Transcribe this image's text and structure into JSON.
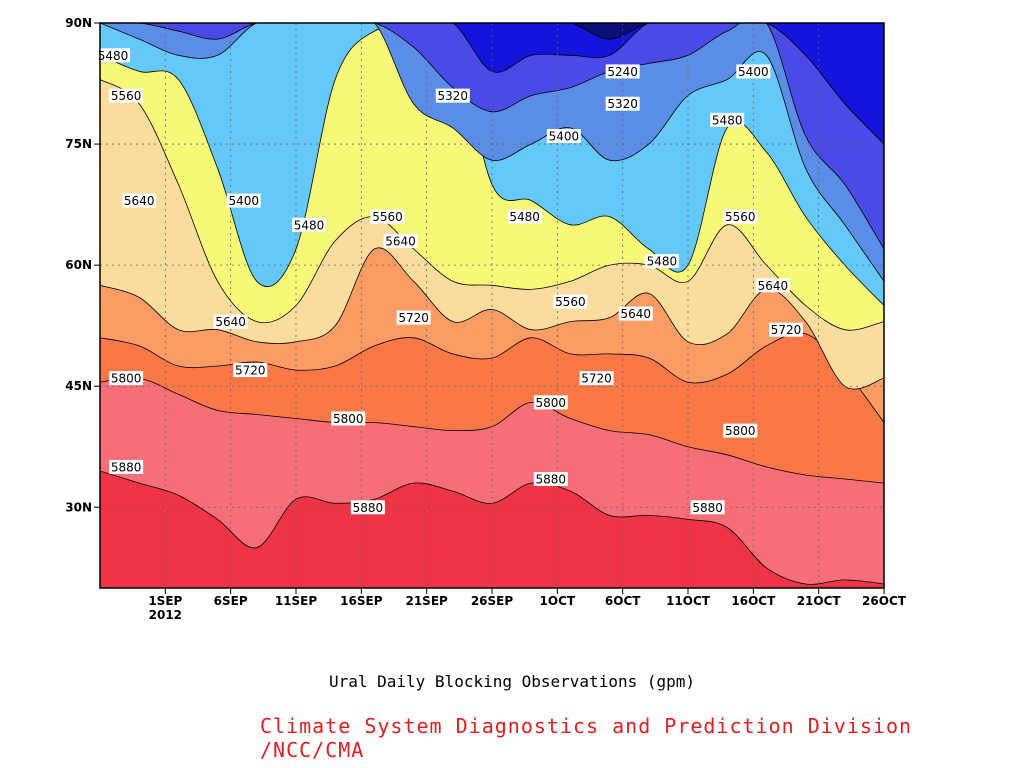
{
  "chart_data": {
    "type": "contour",
    "title": "",
    "caption": "Ural Daily Blocking Observations (gpm)",
    "credit": "Climate System Diagnostics and Prediction Division /NCC/CMA",
    "xlabel": "",
    "ylabel": "",
    "x_ticks": [
      {
        "label": "1SEP",
        "sublabel": "2012",
        "day": 5
      },
      {
        "label": "6SEP",
        "day": 10
      },
      {
        "label": "11SEP",
        "day": 15
      },
      {
        "label": "16SEP",
        "day": 20
      },
      {
        "label": "21SEP",
        "day": 25
      },
      {
        "label": "26SEP",
        "day": 30
      },
      {
        "label": "1OCT",
        "day": 35
      },
      {
        "label": "6OCT",
        "day": 40
      },
      {
        "label": "11OCT",
        "day": 45
      },
      {
        "label": "16OCT",
        "day": 50
      },
      {
        "label": "21OCT",
        "day": 55
      },
      {
        "label": "26OCT",
        "day": 60
      }
    ],
    "y_ticks": [
      {
        "label": "30N",
        "lat": 30
      },
      {
        "label": "45N",
        "lat": 45
      },
      {
        "label": "60N",
        "lat": 60
      },
      {
        "label": "75N",
        "lat": 75
      },
      {
        "label": "90N",
        "lat": 90
      }
    ],
    "xlim": [
      0,
      60
    ],
    "ylim": [
      20,
      90
    ],
    "grid": true,
    "levels": [
      5240,
      5320,
      5400,
      5480,
      5560,
      5640,
      5720,
      5800,
      5880
    ],
    "level_colors": [
      "#0a0f78",
      "#1414dc",
      "#4a4ae8",
      "#5a8ee6",
      "#64c8f8",
      "#f8f878",
      "#fadc9c",
      "#fa9c64",
      "#fa7846",
      "#f66e78",
      "#f03446"
    ],
    "layers": [
      {
        "color": "#f03446",
        "days": [
          0,
          3,
          6,
          9,
          12,
          15,
          18,
          21,
          24,
          27,
          30,
          33,
          36,
          39,
          42,
          45,
          48,
          51,
          54,
          57,
          60
        ],
        "lat": [
          20,
          20,
          20,
          20,
          20,
          20,
          20,
          20,
          20,
          20,
          20,
          20,
          20,
          20,
          20,
          20,
          20,
          20,
          20,
          20,
          20
        ]
      },
      {
        "color": "#f66e78",
        "days": [
          0,
          3,
          6,
          9,
          12,
          15,
          18,
          21,
          24,
          27,
          30,
          33,
          36,
          39,
          42,
          45,
          48,
          51,
          54,
          57,
          60
        ],
        "lat": [
          34.5,
          33,
          31.5,
          28.5,
          25,
          31,
          30.5,
          31,
          33,
          32,
          30.5,
          33,
          32,
          29,
          29,
          28.5,
          27.5,
          22.5,
          20.5,
          21,
          20.5
        ]
      },
      {
        "color": "#fa7846",
        "days": [
          0,
          3,
          6,
          9,
          12,
          15,
          18,
          21,
          24,
          27,
          30,
          33,
          36,
          39,
          42,
          45,
          48,
          51,
          54,
          57,
          60
        ],
        "lat": [
          45.5,
          46,
          44,
          42,
          41.5,
          41,
          40.5,
          40.5,
          40,
          39.5,
          40,
          43,
          41,
          39.5,
          39,
          37.5,
          36.5,
          35,
          34,
          33.5,
          33
        ]
      },
      {
        "color": "#fa9c64",
        "days": [
          0,
          3,
          6,
          9,
          12,
          15,
          18,
          21,
          24,
          27,
          30,
          33,
          36,
          39,
          42,
          45,
          48,
          51,
          54,
          57,
          60
        ],
        "lat": [
          51,
          50,
          47.5,
          47.5,
          48,
          47,
          47.5,
          50,
          51,
          49,
          48.5,
          51,
          49,
          49,
          48.5,
          45.5,
          46.5,
          50,
          51.5,
          47,
          40.5
        ]
      },
      {
        "color": "#fadc9c",
        "days": [
          0,
          3,
          6,
          9,
          12,
          15,
          18,
          21,
          24,
          27,
          30,
          33,
          36,
          39,
          42,
          45,
          48,
          51,
          54,
          57,
          60
        ],
        "lat": [
          57.5,
          56,
          52,
          52,
          50.5,
          50.5,
          52.5,
          62,
          58,
          53,
          54.5,
          52,
          53,
          53.5,
          56.5,
          50.5,
          51.5,
          57,
          53,
          45,
          46
        ]
      },
      {
        "color": "#f8f878",
        "days": [
          0,
          3,
          6,
          9,
          12,
          15,
          18,
          21,
          24,
          27,
          30,
          33,
          36,
          39,
          42,
          45,
          48,
          51,
          54,
          57,
          60
        ],
        "lat": [
          83,
          80,
          70,
          58,
          53,
          55,
          63,
          66,
          62,
          58,
          57.5,
          57,
          58,
          60,
          60,
          58,
          65,
          60,
          55,
          52,
          53
        ]
      },
      {
        "color": "#64c8f8",
        "days": [
          0,
          3,
          6,
          9,
          12,
          15,
          18,
          21,
          24,
          27,
          30,
          33,
          36,
          39,
          42,
          45,
          48,
          51,
          54,
          57,
          60
        ],
        "lat": [
          86,
          84,
          83,
          72,
          58,
          62,
          83,
          89,
          89,
          89,
          70,
          68,
          65,
          66,
          62,
          60,
          77,
          74,
          66,
          60,
          55
        ]
      },
      {
        "color": "#5a8ee6",
        "days": [
          0,
          3,
          6,
          9,
          12,
          15,
          18,
          21,
          24,
          27,
          30,
          33,
          36,
          39,
          42,
          45,
          48,
          51,
          54,
          57,
          60
        ],
        "lat": [
          90,
          88,
          86,
          86,
          90,
          90,
          90,
          90,
          80,
          77,
          73,
          75,
          77,
          73,
          75,
          81,
          83,
          86,
          72,
          65,
          58
        ]
      },
      {
        "color": "#4a4ae8",
        "days": [
          0,
          3,
          6,
          9,
          12,
          15,
          18,
          21,
          24,
          27,
          30,
          33,
          36,
          39,
          42,
          45,
          48,
          51,
          54,
          57,
          60
        ],
        "lat": [
          90,
          90,
          89,
          88,
          90,
          90,
          90,
          90,
          87,
          82,
          79,
          81,
          82,
          84,
          85,
          86,
          89,
          90,
          76,
          70,
          62
        ]
      },
      {
        "color": "#1414dc",
        "days": [
          0,
          3,
          6,
          9,
          12,
          15,
          18,
          21,
          24,
          27,
          30,
          33,
          36,
          39,
          42,
          45,
          48,
          51,
          54,
          57,
          60
        ],
        "lat": [
          90,
          90,
          90,
          90,
          90,
          90,
          90,
          90,
          90,
          90,
          84,
          86,
          86,
          86,
          90,
          90,
          90,
          90,
          86,
          80,
          75
        ]
      },
      {
        "color": "#0a0f78",
        "days": [
          0,
          3,
          6,
          9,
          12,
          15,
          18,
          21,
          24,
          27,
          30,
          33,
          36,
          39,
          42,
          45,
          48,
          51,
          54,
          57,
          60
        ],
        "lat": [
          90,
          90,
          90,
          90,
          90,
          90,
          90,
          90,
          90,
          90,
          90,
          90,
          90,
          88,
          90,
          90,
          90,
          90,
          90,
          90,
          90
        ]
      }
    ],
    "contour_labels": [
      {
        "text": "5480",
        "day": 1,
        "lat": 86
      },
      {
        "text": "5560",
        "day": 2,
        "lat": 81
      },
      {
        "text": "5640",
        "day": 3,
        "lat": 68
      },
      {
        "text": "5400",
        "day": 11,
        "lat": 68
      },
      {
        "text": "5480",
        "day": 16,
        "lat": 65
      },
      {
        "text": "5560",
        "day": 22,
        "lat": 66
      },
      {
        "text": "5640",
        "day": 23,
        "lat": 63
      },
      {
        "text": "5320",
        "day": 27,
        "lat": 81
      },
      {
        "text": "5400",
        "day": 35.5,
        "lat": 76
      },
      {
        "text": "5480",
        "day": 32.5,
        "lat": 66
      },
      {
        "text": "5240",
        "day": 40,
        "lat": 84
      },
      {
        "text": "5320",
        "day": 40,
        "lat": 80
      },
      {
        "text": "5480",
        "day": 43,
        "lat": 60.5
      },
      {
        "text": "5400",
        "day": 50,
        "lat": 84
      },
      {
        "text": "5480",
        "day": 48,
        "lat": 78
      },
      {
        "text": "5560",
        "day": 49,
        "lat": 66
      },
      {
        "text": "5640",
        "day": 10,
        "lat": 53
      },
      {
        "text": "5720",
        "day": 24,
        "lat": 53.5
      },
      {
        "text": "5560",
        "day": 36,
        "lat": 55.5
      },
      {
        "text": "5640",
        "day": 41,
        "lat": 54
      },
      {
        "text": "5640",
        "day": 51.5,
        "lat": 57.5
      },
      {
        "text": "5720",
        "day": 52.5,
        "lat": 52
      },
      {
        "text": "5720",
        "day": 11.5,
        "lat": 47
      },
      {
        "text": "5800",
        "day": 2,
        "lat": 46
      },
      {
        "text": "5720",
        "day": 38,
        "lat": 46
      },
      {
        "text": "5800",
        "day": 19,
        "lat": 41
      },
      {
        "text": "5800",
        "day": 34.5,
        "lat": 43
      },
      {
        "text": "5800",
        "day": 49,
        "lat": 39.5
      },
      {
        "text": "5880",
        "day": 2,
        "lat": 35
      },
      {
        "text": "5880",
        "day": 20.5,
        "lat": 30
      },
      {
        "text": "5880",
        "day": 34.5,
        "lat": 33.5
      },
      {
        "text": "5880",
        "day": 46.5,
        "lat": 30
      }
    ]
  }
}
